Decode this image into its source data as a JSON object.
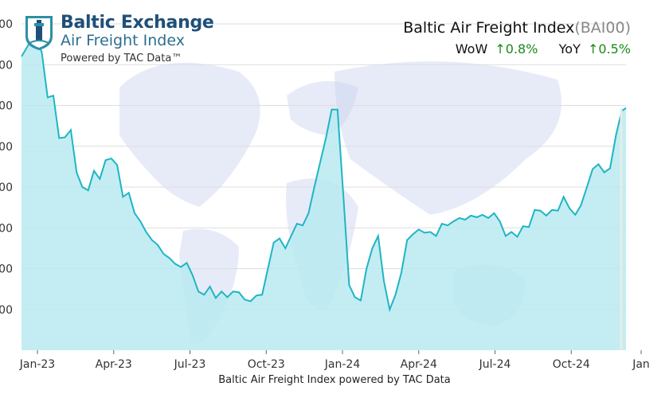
{
  "brand": {
    "name": "Baltic Exchange",
    "subtitle": "Air Freight Index",
    "powered": "Powered by TAC Data™",
    "logo_icon": "lighthouse-shield-icon"
  },
  "header": {
    "title": "Baltic Air Freight Index",
    "code": "(BAI00)",
    "wow_label": "WoW",
    "wow_value": "0.8%",
    "yoy_label": "YoY",
    "yoy_value": "0.5%",
    "up_arrow": "↑"
  },
  "caption": "Baltic Air Freight Index powered by TAC Data",
  "colors": {
    "line": "#1fb5c4",
    "fill": "#b8eaf0",
    "up": "#1a8a1a",
    "brand": "#1f4f78",
    "map": "#c9d3ef"
  },
  "chart_data": {
    "type": "area",
    "xlabel": "",
    "ylabel": "",
    "grid": true,
    "background_image": "world-map",
    "x_tick_labels": [
      "Jan-23",
      "Apr-23",
      "Jul-23",
      "Oct-23",
      "Jan-24",
      "Apr-24",
      "Jul-24",
      "Oct-24",
      "Jan"
    ],
    "y_tick_labels": [
      "000",
      "000",
      "000",
      "000",
      "000",
      "000",
      "000",
      "000"
    ],
    "series": [
      {
        "values": [
          [
            0.0,
            96
          ],
          [
            0.5,
            97.5
          ],
          [
            1.0,
            98.5
          ],
          [
            1.4,
            96.5
          ],
          [
            1.8,
            91
          ],
          [
            2.2,
            91.2
          ],
          [
            2.6,
            86
          ],
          [
            3.0,
            86.1
          ],
          [
            3.4,
            87
          ],
          [
            3.8,
            81.8
          ],
          [
            4.2,
            80
          ],
          [
            4.6,
            79.6
          ],
          [
            5.0,
            82
          ],
          [
            5.4,
            81
          ],
          [
            5.8,
            83.3
          ],
          [
            6.2,
            83.5
          ],
          [
            6.6,
            82.7
          ],
          [
            7.0,
            78.8
          ],
          [
            7.4,
            79.3
          ],
          [
            7.8,
            76.8
          ],
          [
            8.2,
            75.8
          ],
          [
            8.6,
            74.5
          ],
          [
            9.0,
            73.5
          ],
          [
            9.4,
            72.9
          ],
          [
            9.8,
            71.8
          ],
          [
            10.2,
            71.3
          ],
          [
            10.6,
            70.6
          ],
          [
            11.0,
            70.2
          ],
          [
            11.4,
            70.7
          ],
          [
            11.8,
            69.2
          ],
          [
            12.2,
            67.2
          ],
          [
            12.6,
            66.8
          ],
          [
            13.0,
            67.8
          ],
          [
            13.4,
            66.4
          ],
          [
            13.8,
            67.2
          ],
          [
            14.2,
            66.5
          ],
          [
            14.6,
            67.2
          ],
          [
            15.0,
            67.1
          ],
          [
            15.4,
            66.2
          ],
          [
            15.8,
            66
          ],
          [
            16.2,
            66.7
          ],
          [
            16.6,
            66.8
          ],
          [
            17.0,
            70
          ],
          [
            17.4,
            73.2
          ],
          [
            17.8,
            73.7
          ],
          [
            18.2,
            72.5
          ],
          [
            18.6,
            74
          ],
          [
            19.0,
            75.5
          ],
          [
            19.4,
            75.3
          ],
          [
            19.8,
            76.8
          ],
          [
            20.2,
            80
          ],
          [
            20.6,
            83
          ],
          [
            21.0,
            86
          ],
          [
            21.4,
            89.5
          ],
          [
            21.8,
            89.5
          ],
          [
            22.2,
            79
          ],
          [
            22.6,
            68
          ],
          [
            23.0,
            66.5
          ],
          [
            23.4,
            66.1
          ],
          [
            23.8,
            70
          ],
          [
            24.2,
            72.5
          ],
          [
            24.6,
            74
          ],
          [
            25.0,
            68.5
          ],
          [
            25.4,
            65
          ],
          [
            25.8,
            66.8
          ],
          [
            26.2,
            69.5
          ],
          [
            26.6,
            73.5
          ],
          [
            27.0,
            74.2
          ],
          [
            27.4,
            74.8
          ],
          [
            27.8,
            74.4
          ],
          [
            28.2,
            74.5
          ],
          [
            28.6,
            74
          ],
          [
            29.0,
            75.5
          ],
          [
            29.4,
            75.3
          ],
          [
            29.8,
            75.8
          ],
          [
            30.2,
            76.2
          ],
          [
            30.6,
            76
          ],
          [
            31.0,
            76.5
          ],
          [
            31.4,
            76.3
          ],
          [
            31.8,
            76.6
          ],
          [
            32.2,
            76.2
          ],
          [
            32.6,
            76.8
          ],
          [
            33.0,
            75.8
          ],
          [
            33.4,
            74
          ],
          [
            33.8,
            74.5
          ],
          [
            34.2,
            73.9
          ],
          [
            34.6,
            75.2
          ],
          [
            35.0,
            75.1
          ],
          [
            35.4,
            77.2
          ],
          [
            35.8,
            77.1
          ],
          [
            36.2,
            76.5
          ],
          [
            36.6,
            77.2
          ],
          [
            37.0,
            77.1
          ],
          [
            37.4,
            78.8
          ],
          [
            37.8,
            77.4
          ],
          [
            38.2,
            76.6
          ],
          [
            38.6,
            77.8
          ],
          [
            39.0,
            80
          ],
          [
            39.4,
            82.2
          ],
          [
            39.8,
            82.8
          ],
          [
            40.2,
            81.8
          ],
          [
            40.6,
            82.3
          ],
          [
            41.0,
            86.3
          ],
          [
            41.4,
            89.3
          ],
          [
            41.7,
            89.7
          ]
        ]
      }
    ]
  }
}
